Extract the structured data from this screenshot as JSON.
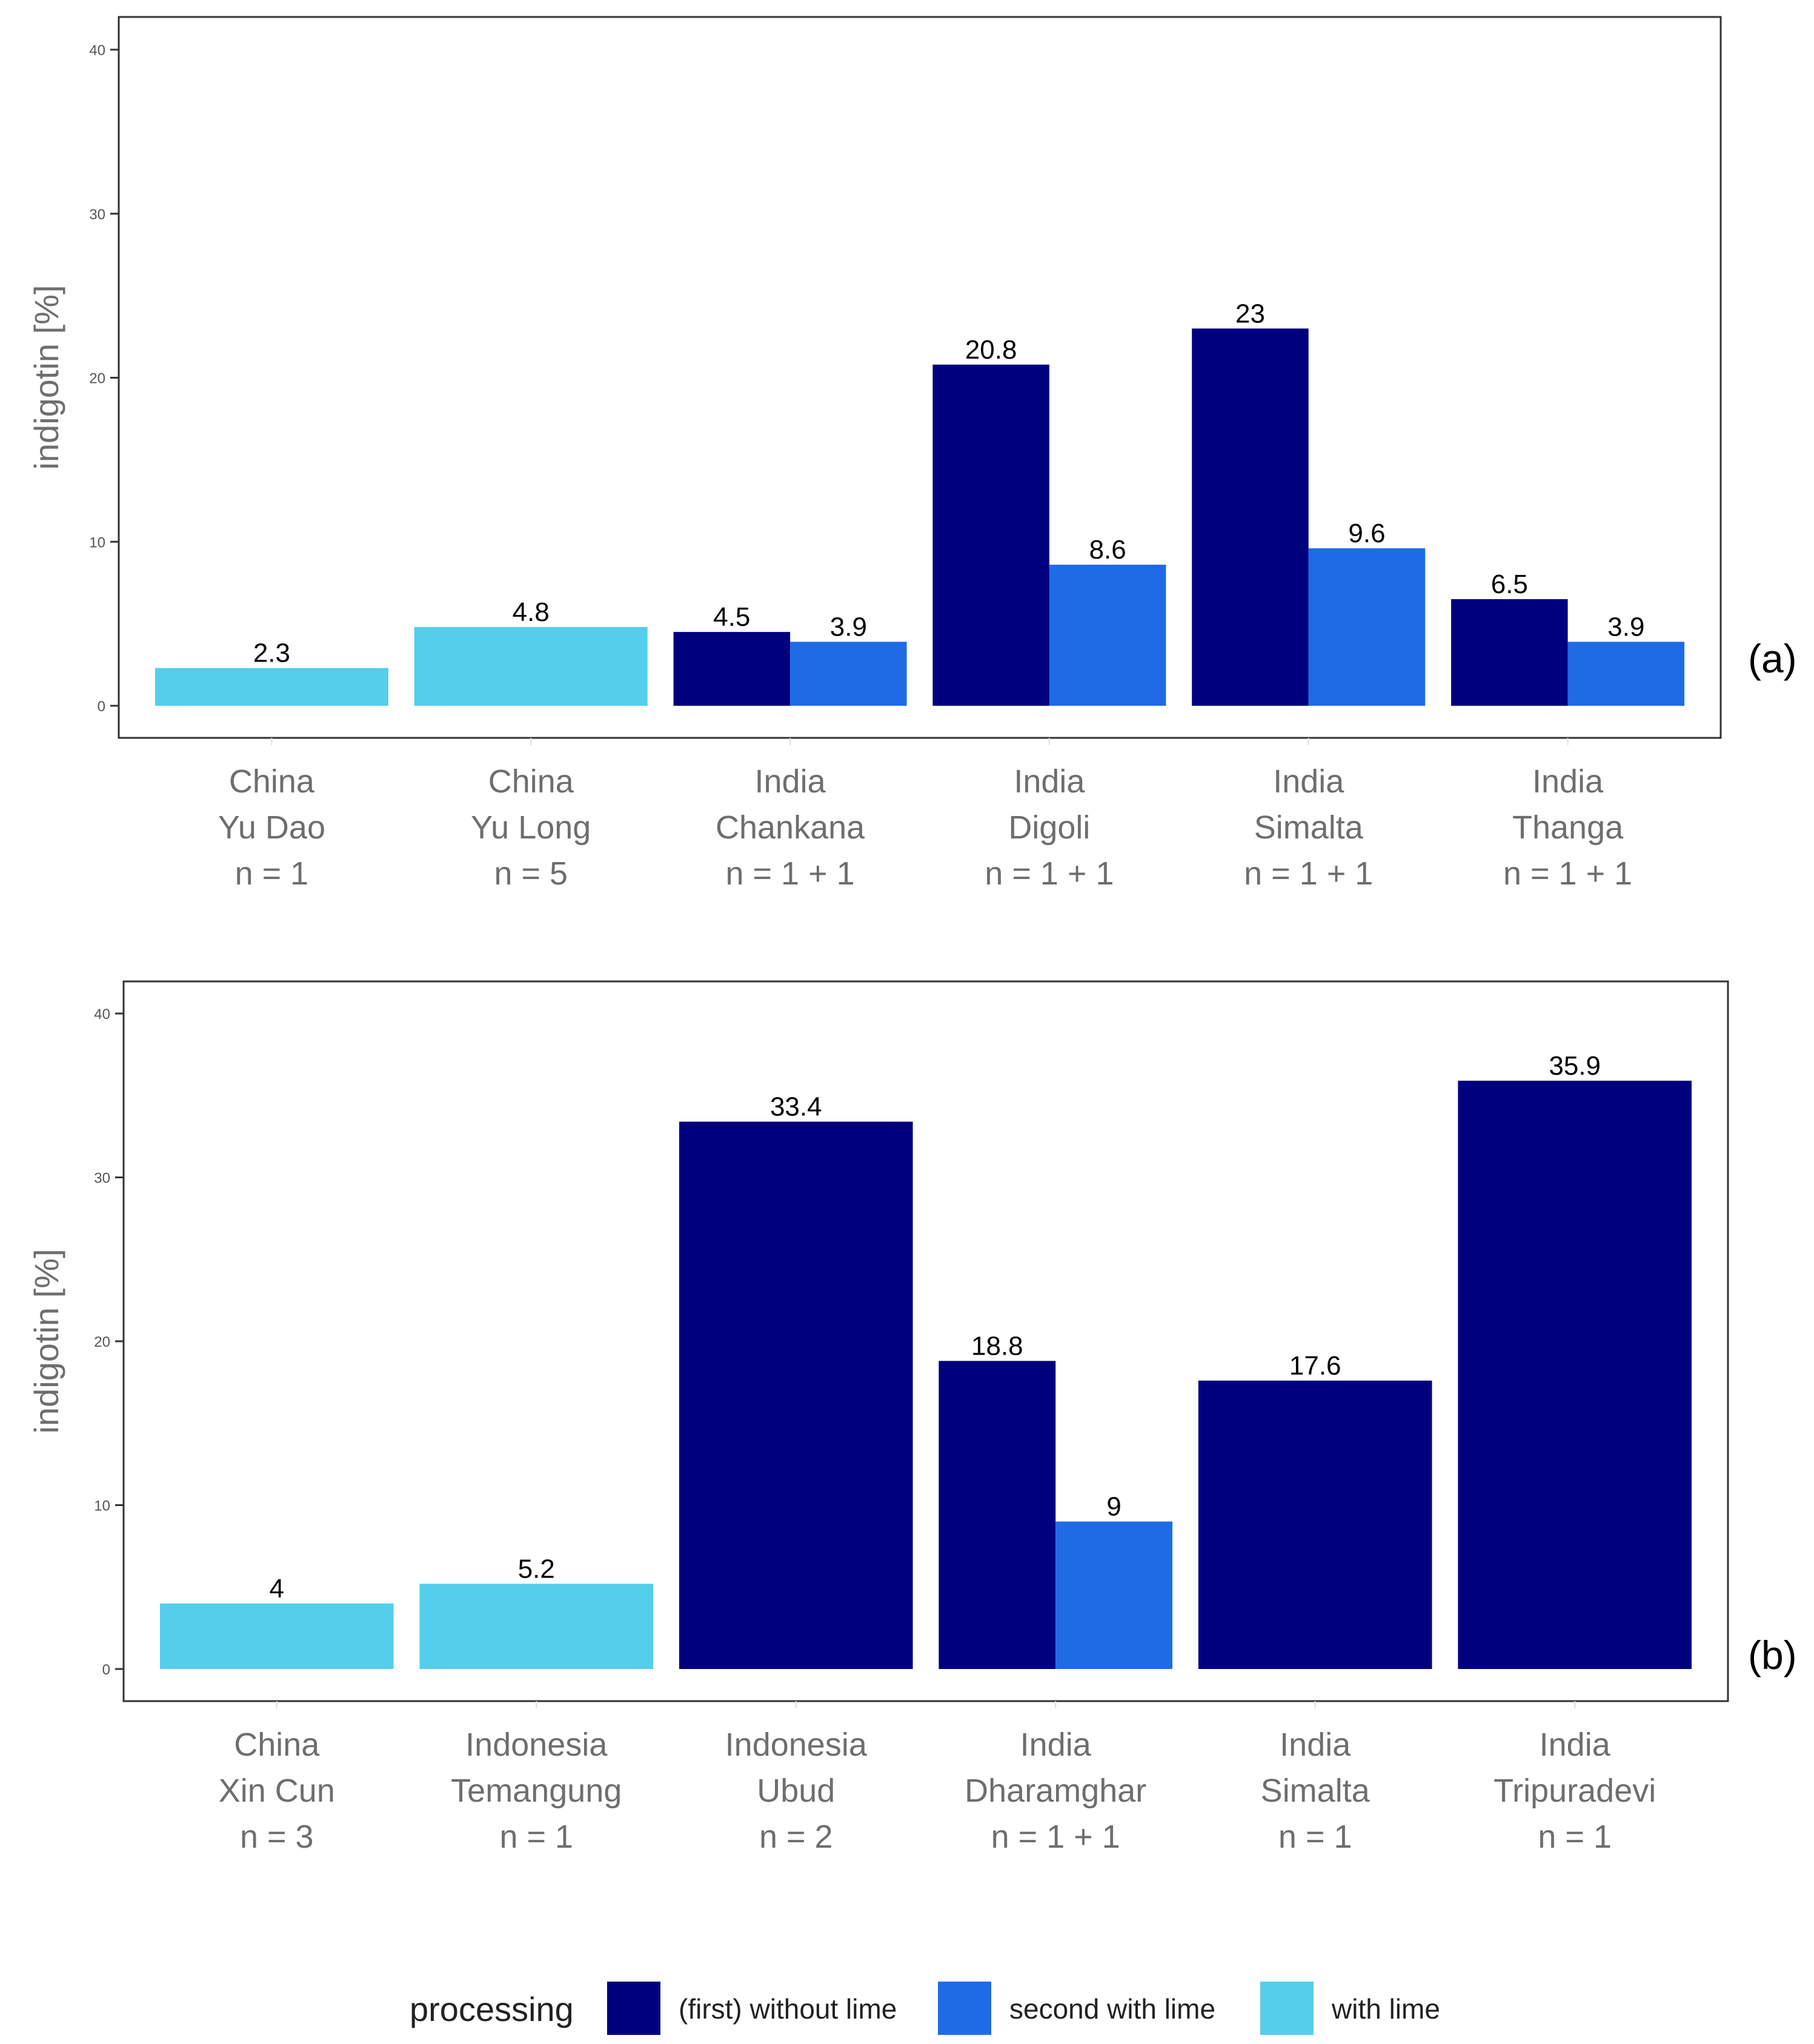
{
  "legend": {
    "title": "processing",
    "items": [
      {
        "key": "without",
        "label": "(first) without lime",
        "color": "#00007f"
      },
      {
        "key": "second",
        "label": "second with lime",
        "color": "#1f6be6"
      },
      {
        "key": "with",
        "label": "with lime",
        "color": "#55ceeb"
      }
    ]
  },
  "chart_data": [
    {
      "type": "bar",
      "panel_tag": "(a)",
      "ylabel": "indigotin [%]",
      "ylim": [
        0,
        40
      ],
      "yticks": [
        0,
        10,
        20,
        30,
        40
      ],
      "grid": false,
      "categories": [
        {
          "lines": [
            "China",
            "Yu Dao",
            "n = 1"
          ],
          "bars": [
            {
              "series": "with",
              "value": 2.3
            }
          ]
        },
        {
          "lines": [
            "China",
            "Yu Long",
            "n = 5"
          ],
          "bars": [
            {
              "series": "with",
              "value": 4.8
            }
          ]
        },
        {
          "lines": [
            "India",
            "Chankana",
            "n = 1 + 1"
          ],
          "bars": [
            {
              "series": "without",
              "value": 4.5
            },
            {
              "series": "second",
              "value": 3.9
            }
          ]
        },
        {
          "lines": [
            "India",
            "Digoli",
            "n = 1 + 1"
          ],
          "bars": [
            {
              "series": "without",
              "value": 20.8
            },
            {
              "series": "second",
              "value": 8.6
            }
          ]
        },
        {
          "lines": [
            "India",
            "Simalta",
            "n = 1 + 1"
          ],
          "bars": [
            {
              "series": "without",
              "value": 23
            },
            {
              "series": "second",
              "value": 9.6
            }
          ]
        },
        {
          "lines": [
            "India",
            "Thanga",
            "n = 1 + 1"
          ],
          "bars": [
            {
              "series": "without",
              "value": 6.5
            },
            {
              "series": "second",
              "value": 3.9
            }
          ]
        }
      ]
    },
    {
      "type": "bar",
      "panel_tag": "(b)",
      "ylabel": "indigotin [%]",
      "ylim": [
        0,
        40
      ],
      "yticks": [
        0,
        10,
        20,
        30,
        40
      ],
      "grid": false,
      "categories": [
        {
          "lines": [
            "China",
            "Xin Cun",
            "n = 3"
          ],
          "bars": [
            {
              "series": "with",
              "value": 4
            }
          ]
        },
        {
          "lines": [
            "Indonesia",
            "Temangung",
            "n = 1"
          ],
          "bars": [
            {
              "series": "with",
              "value": 5.2
            }
          ]
        },
        {
          "lines": [
            "Indonesia",
            "Ubud",
            "n = 2"
          ],
          "bars": [
            {
              "series": "without",
              "value": 33.4
            }
          ]
        },
        {
          "lines": [
            "India",
            "Dharamghar",
            "n = 1 + 1"
          ],
          "bars": [
            {
              "series": "without",
              "value": 18.8
            },
            {
              "series": "second",
              "value": 9
            }
          ]
        },
        {
          "lines": [
            "India",
            "Simalta",
            "n = 1"
          ],
          "bars": [
            {
              "series": "without",
              "value": 17.6
            }
          ]
        },
        {
          "lines": [
            "India",
            "Tripuradevi",
            "n = 1"
          ],
          "bars": [
            {
              "series": "without",
              "value": 35.9
            }
          ]
        }
      ]
    }
  ]
}
